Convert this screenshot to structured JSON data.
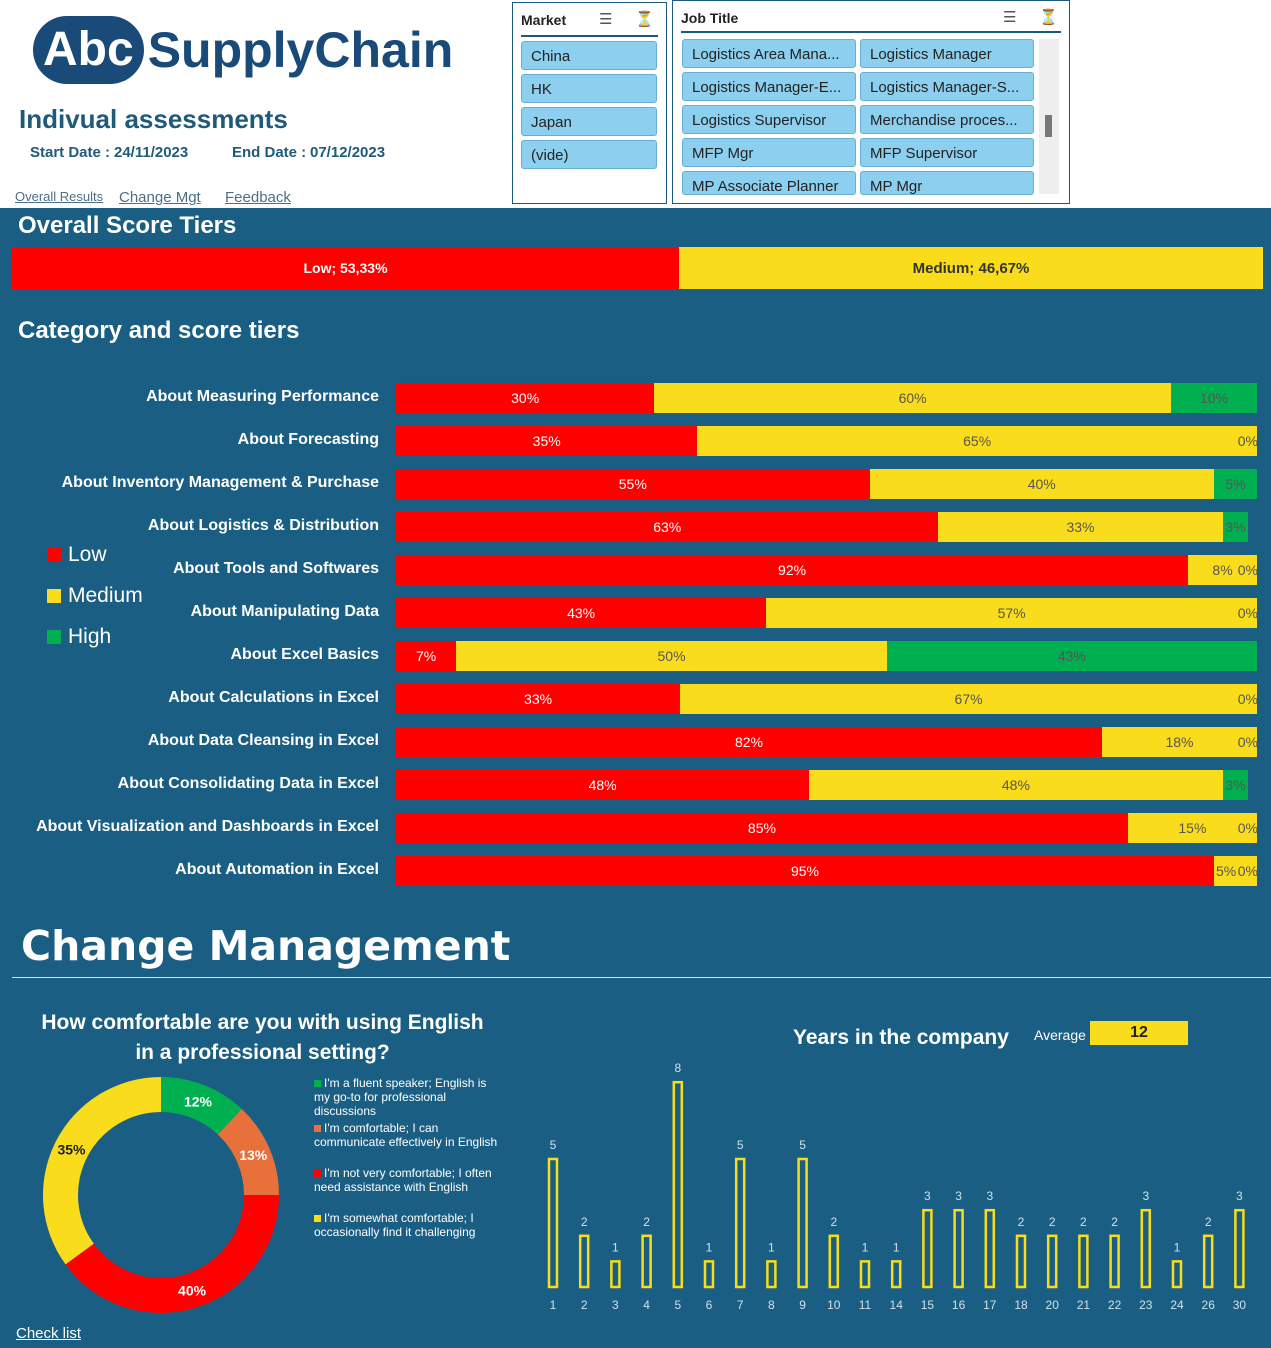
{
  "header": {
    "logo_abc": "Abc",
    "logo_rest": "SupplyChain",
    "title": "Indivual assessments",
    "start_label": "Start Date :",
    "start_date": "24/11/2023",
    "end_label": "End Date :",
    "end_date": "07/12/2023",
    "nav": [
      "Overall Results",
      "Change Mgt",
      "Feedback"
    ]
  },
  "market_slicer": {
    "title": "Market",
    "items": [
      "China",
      "HK",
      "Japan",
      "(vide)"
    ]
  },
  "job_slicer": {
    "title": "Job Title",
    "items": [
      "Logistics Area Mana...",
      "Logistics Manager",
      "Logistics Manager-E...",
      "Logistics Manager-S...",
      "Logistics Supervisor",
      "Merchandise proces...",
      "MFP Mgr",
      "MFP Supervisor",
      "MP Associate Planner",
      "MP Mgr"
    ]
  },
  "colors": {
    "low": "#ff0000",
    "medium": "#f9dc1c",
    "high": "#00b050",
    "comfortable": "#e8703a",
    "background": "#1a5f83"
  },
  "sections": {
    "overall": "Overall Score Tiers",
    "category": "Category and score tiers",
    "change": "Change Management",
    "checklist": "Check list"
  },
  "chart_data": [
    {
      "type": "bar",
      "title": "Overall Score Tiers",
      "stacked": true,
      "series": [
        {
          "name": "Low",
          "value": 53.33,
          "label": "Low; 53,33%"
        },
        {
          "name": "Medium",
          "value": 46.67,
          "label": "Medium; 46,67%"
        }
      ]
    },
    {
      "type": "bar",
      "orientation": "horizontal",
      "stacked": true,
      "title": "Category and score tiers",
      "legend": [
        "Low",
        "Medium",
        "High"
      ],
      "legend_position": "left",
      "categories": [
        "About Measuring Performance",
        "About Forecasting",
        "About Inventory Management & Purchase",
        "About Logistics & Distribution",
        "About Tools and Softwares",
        "About Manipulating Data",
        "About Excel Basics",
        "About Calculations in Excel",
        "About Data Cleansing in Excel",
        "About Consolidating Data in Excel",
        "About Visualization and Dashboards in Excel",
        "About Automation in Excel"
      ],
      "series": [
        {
          "name": "Low",
          "values": [
            30,
            35,
            55,
            63,
            92,
            43,
            7,
            33,
            82,
            48,
            85,
            95
          ]
        },
        {
          "name": "Medium",
          "values": [
            60,
            65,
            40,
            33,
            8,
            57,
            50,
            67,
            18,
            48,
            15,
            5
          ]
        },
        {
          "name": "High",
          "values": [
            10,
            0,
            5,
            3,
            0,
            0,
            43,
            0,
            0,
            3,
            0,
            0
          ]
        }
      ]
    },
    {
      "type": "pie",
      "donut": true,
      "title": "How comfortable are you with using English in a professional setting?",
      "legend_position": "right",
      "slices": [
        {
          "label": "I'm a fluent speaker; English is my go-to for professional discussions",
          "value": 12,
          "color": "#00b050"
        },
        {
          "label": "I'm comfortable; I can communicate effectively in English",
          "value": 13,
          "color": "#e8703a"
        },
        {
          "label": "I'm not very comfortable; I often need assistance with English",
          "value": 40,
          "color": "#ff0000"
        },
        {
          "label": "I'm somewhat comfortable; I occasionally find it challenging",
          "value": 35,
          "color": "#f9dc1c"
        }
      ]
    },
    {
      "type": "bar",
      "title": "Years in the company",
      "average_label": "Average",
      "average": 12,
      "categories": [
        "1",
        "2",
        "3",
        "4",
        "5",
        "6",
        "7",
        "8",
        "9",
        "10",
        "11",
        "14",
        "15",
        "16",
        "17",
        "18",
        "20",
        "21",
        "22",
        "23",
        "24",
        "26",
        "30"
      ],
      "values": [
        5,
        2,
        1,
        2,
        8,
        1,
        5,
        1,
        5,
        2,
        1,
        1,
        3,
        3,
        3,
        2,
        2,
        2,
        2,
        3,
        1,
        2,
        3
      ]
    }
  ]
}
